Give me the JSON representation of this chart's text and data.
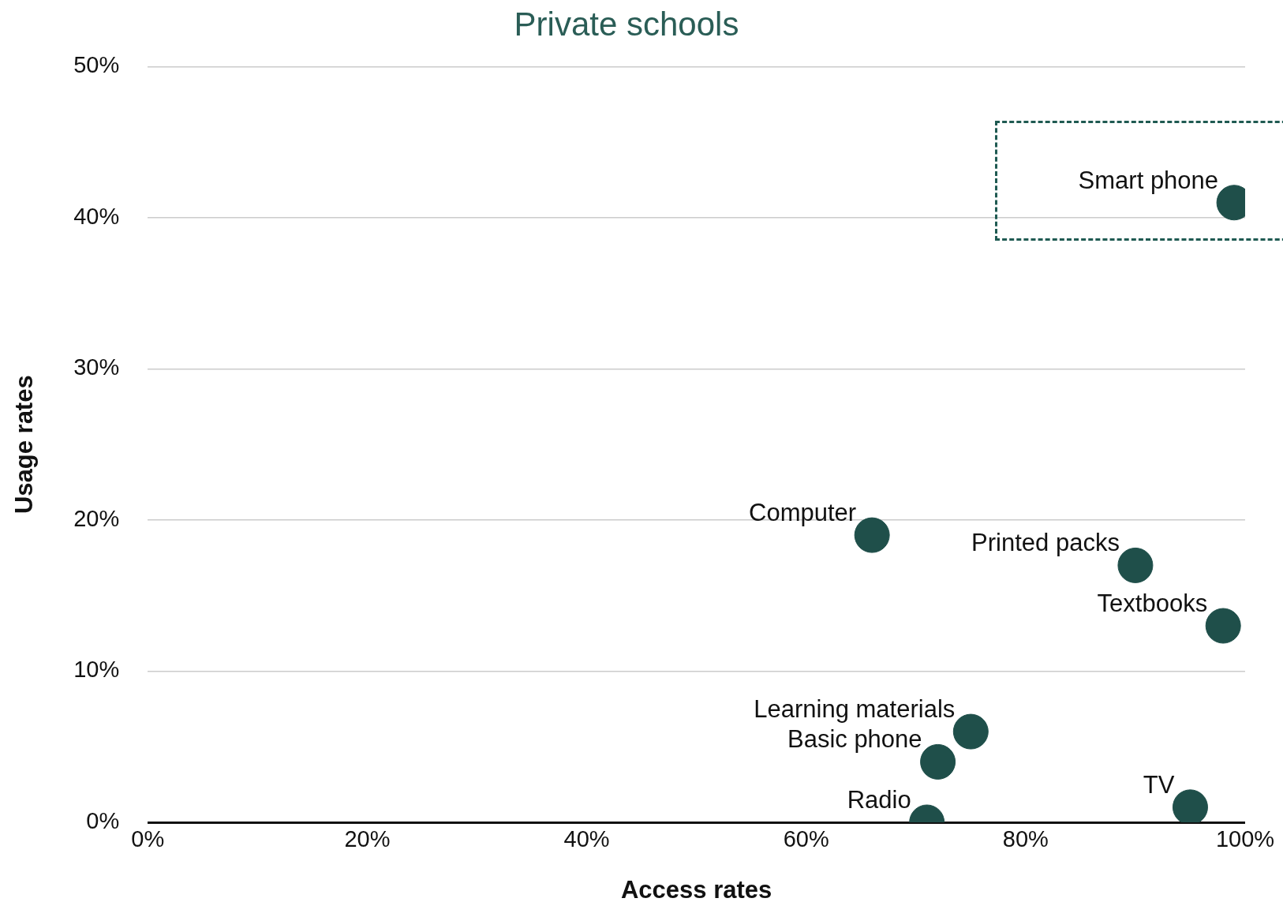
{
  "chart_data": {
    "type": "scatter",
    "title": "Private schools",
    "xlabel": "Access rates",
    "ylabel": "Usage rates",
    "x": [
      99,
      66,
      90,
      98,
      75,
      72,
      71,
      95
    ],
    "series": [
      {
        "color": "#1f4f4a",
        "values": [
          41,
          19,
          17,
          13,
          6,
          4,
          0,
          1
        ]
      }
    ],
    "xlim": [
      0,
      100
    ],
    "ylim": [
      0,
      50
    ],
    "xticks": [
      {
        "value": 0,
        "label": "0%"
      },
      {
        "value": 20,
        "label": "20%"
      },
      {
        "value": 40,
        "label": "40%"
      },
      {
        "value": 60,
        "label": "60%"
      },
      {
        "value": 80,
        "label": "80%"
      },
      {
        "value": 100,
        "label": "100%"
      }
    ],
    "yticks": [
      {
        "value": 0,
        "label": "0%"
      },
      {
        "value": 10,
        "label": "10%"
      },
      {
        "value": 20,
        "label": "20%"
      },
      {
        "value": 30,
        "label": "30%"
      },
      {
        "value": 40,
        "label": "40%"
      },
      {
        "value": 50,
        "label": "50%"
      }
    ],
    "grid": "y",
    "marker": "circle",
    "legend": false,
    "annotations": [
      {
        "text": "Smart phone",
        "x": 99,
        "y": 41
      },
      {
        "text": "Computer",
        "x": 66,
        "y": 19
      },
      {
        "text": "Printed packs",
        "x": 90,
        "y": 17
      },
      {
        "text": "Textbooks",
        "x": 98,
        "y": 13
      },
      {
        "text": "Learning materials",
        "x": 75,
        "y": 6
      },
      {
        "text": "Basic phone",
        "x": 72,
        "y": 4
      },
      {
        "text": "Radio",
        "x": 71,
        "y": 0
      },
      {
        "text": "TV",
        "x": 95,
        "y": 1
      }
    ]
  }
}
